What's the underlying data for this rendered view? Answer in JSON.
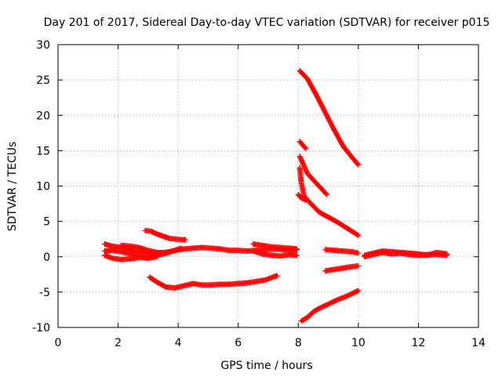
{
  "chart_data": {
    "type": "scatter",
    "title": "Day 201 of 2017, Sidereal Day-to-day VTEC variation (SDTVAR) for receiver p015",
    "xlabel": "GPS time / hours",
    "ylabel": "SDTVAR / TECUs",
    "xlim": [
      0,
      14
    ],
    "ylim": [
      -10,
      30
    ],
    "x_ticks": [
      "0",
      "2",
      "4",
      "6",
      "8",
      "10",
      "12",
      "14"
    ],
    "y_ticks": [
      "-10",
      "-5",
      "0",
      "5",
      "10",
      "15",
      "20",
      "25",
      "30"
    ],
    "grid": true,
    "legend": "none",
    "marker": "plus",
    "marker_color": "#ff0000",
    "series": [
      {
        "x": [
          1.55,
          1.8,
          2.1,
          2.4,
          2.7,
          3.0,
          3.3,
          3.6,
          3.9,
          4.2,
          4.5,
          4.8,
          5.1,
          5.4,
          5.7,
          6.0,
          6.3,
          6.6,
          6.9,
          7.2,
          7.5,
          7.8,
          7.95
        ],
        "y": [
          1.8,
          1.5,
          1.3,
          1.0,
          0.7,
          0.5,
          0.4,
          0.6,
          0.9,
          1.1,
          1.2,
          1.3,
          1.2,
          1.1,
          0.9,
          0.9,
          0.8,
          0.9,
          1.0,
          1.1,
          1.0,
          0.9,
          1.0
        ]
      },
      {
        "x": [
          1.55,
          1.8,
          2.1,
          2.4,
          2.7,
          3.0,
          3.3,
          3.6,
          3.9,
          4.1
        ],
        "y": [
          0.8,
          0.9,
          0.7,
          0.4,
          0.1,
          -0.1,
          0.2,
          0.5,
          0.9,
          1.2
        ]
      },
      {
        "x": [
          1.55,
          1.8,
          2.1,
          2.4,
          2.7,
          3.0,
          3.3
        ],
        "y": [
          0.2,
          -0.2,
          -0.4,
          -0.3,
          -0.1,
          -0.2,
          0.0
        ]
      },
      {
        "x": [
          2.1,
          2.4,
          2.7,
          3.0,
          3.3,
          3.6
        ],
        "y": [
          1.6,
          1.5,
          1.3,
          0.9,
          0.6,
          0.6
        ]
      },
      {
        "x": [
          2.9,
          3.1,
          3.3,
          3.5,
          3.7,
          3.9,
          4.1,
          4.25
        ],
        "y": [
          3.7,
          3.6,
          3.2,
          2.9,
          2.6,
          2.5,
          2.4,
          2.4
        ]
      },
      {
        "x": [
          3.05,
          3.3,
          3.6,
          3.9,
          4.2,
          4.5,
          4.8,
          5.1,
          5.4,
          5.7,
          6.0,
          6.3,
          6.6,
          6.9,
          7.2,
          7.3
        ],
        "y": [
          -2.9,
          -3.6,
          -4.3,
          -4.4,
          -4.1,
          -3.8,
          -4.0,
          -4.0,
          -3.9,
          -3.9,
          -3.8,
          -3.7,
          -3.5,
          -3.3,
          -2.8,
          -2.7
        ]
      },
      {
        "x": [
          6.5,
          6.8,
          7.1,
          7.4,
          7.7,
          7.95
        ],
        "y": [
          1.8,
          1.6,
          1.4,
          1.3,
          1.2,
          1.1
        ]
      },
      {
        "x": [
          6.5,
          6.8,
          7.1,
          7.4,
          7.7,
          7.95
        ],
        "y": [
          0.8,
          0.4,
          0.2,
          0.1,
          0.3,
          0.2
        ]
      },
      {
        "x": [
          8.05,
          8.3,
          8.6,
          8.9,
          9.2,
          9.5,
          9.8,
          10.0
        ],
        "y": [
          26.3,
          25.2,
          22.9,
          20.4,
          17.9,
          15.6,
          14.0,
          13.0
        ]
      },
      {
        "x": [
          8.05,
          8.15,
          8.25
        ],
        "y": [
          16.3,
          15.8,
          15.3
        ]
      },
      {
        "x": [
          8.05,
          8.3,
          8.6,
          8.95
        ],
        "y": [
          14.2,
          11.8,
          10.4,
          8.8
        ]
      },
      {
        "x": [
          8.05,
          8.1,
          8.2,
          8.4,
          8.7,
          9.0,
          9.3,
          9.6,
          9.9,
          10.0
        ],
        "y": [
          12.6,
          10.5,
          8.5,
          7.6,
          6.3,
          5.6,
          4.9,
          4.1,
          3.3,
          3.0
        ]
      },
      {
        "x": [
          8.0,
          8.1,
          8.25
        ],
        "y": [
          8.8,
          8.3,
          8.0
        ]
      },
      {
        "x": [
          8.1,
          8.3,
          8.5,
          8.7,
          9.0,
          9.3,
          9.6,
          9.9,
          10.0
        ],
        "y": [
          -9.1,
          -8.6,
          -7.8,
          -7.3,
          -6.7,
          -6.1,
          -5.6,
          -5.0,
          -4.8
        ]
      },
      {
        "x": [
          8.9,
          9.2,
          9.5,
          9.8,
          10.0
        ],
        "y": [
          1.0,
          0.9,
          0.8,
          0.7,
          0.5
        ]
      },
      {
        "x": [
          8.9,
          9.2,
          9.5,
          9.8,
          10.0
        ],
        "y": [
          -2.0,
          -1.8,
          -1.6,
          -1.4,
          -1.3
        ]
      },
      {
        "x": [
          10.2,
          10.5,
          10.8,
          11.1,
          11.4,
          11.7,
          12.0,
          12.3,
          12.6,
          12.95
        ],
        "y": [
          0.0,
          0.3,
          0.6,
          0.4,
          0.5,
          0.3,
          0.2,
          0.3,
          0.3,
          0.2
        ]
      },
      {
        "x": [
          10.2,
          10.5,
          10.8,
          11.1,
          11.4,
          11.7,
          12.0,
          12.3,
          12.6,
          12.95
        ],
        "y": [
          0.2,
          0.5,
          0.8,
          0.7,
          0.6,
          0.5,
          0.4,
          0.2,
          0.6,
          0.4
        ]
      }
    ]
  }
}
